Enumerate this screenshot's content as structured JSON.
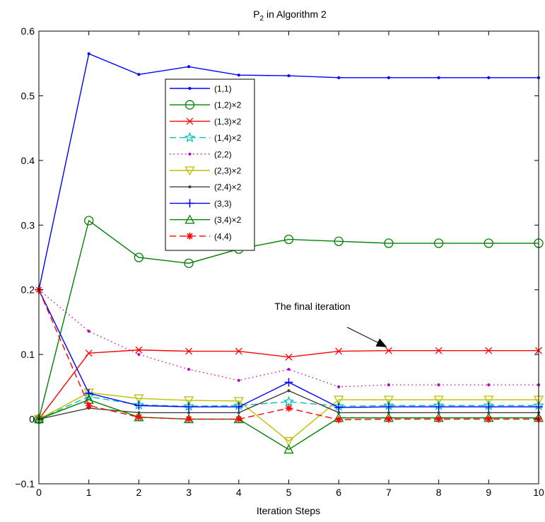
{
  "chart_data": {
    "type": "line",
    "title_main": "P",
    "title_sub": "2",
    "title_rest": " in Algorithm 2",
    "xlabel": "Iteration Steps",
    "ylabel": "",
    "xlim": [
      0,
      10
    ],
    "ylim": [
      -0.1,
      0.6
    ],
    "xticks": [
      0,
      1,
      2,
      3,
      4,
      5,
      6,
      7,
      8,
      9,
      10
    ],
    "yticks": [
      -0.1,
      0,
      0.1,
      0.2,
      0.3,
      0.4,
      0.5,
      0.6
    ],
    "ytick_labels": [
      "−0.1",
      "0",
      "0.1",
      "0.2",
      "0.3",
      "0.4",
      "0.5",
      "0.6"
    ],
    "grid": false,
    "legend_position": "upper-left-center",
    "x": [
      0,
      1,
      2,
      3,
      4,
      5,
      6,
      7,
      8,
      9,
      10
    ],
    "series": [
      {
        "name": "(1,1)",
        "color": "#0000ff",
        "dash": "solid",
        "marker": "dot",
        "values": [
          0.2,
          0.565,
          0.533,
          0.545,
          0.532,
          0.531,
          0.528,
          0.528,
          0.528,
          0.528,
          0.528
        ]
      },
      {
        "name": "(1,2)×2",
        "color": "#008000",
        "dash": "solid",
        "marker": "circle",
        "values": [
          0.0,
          0.307,
          0.25,
          0.241,
          0.263,
          0.278,
          0.275,
          0.272,
          0.272,
          0.272,
          0.272
        ]
      },
      {
        "name": "(1,3)×2",
        "color": "#ff0000",
        "dash": "solid",
        "marker": "x",
        "values": [
          0.0,
          0.102,
          0.107,
          0.105,
          0.105,
          0.096,
          0.105,
          0.106,
          0.106,
          0.106,
          0.106
        ]
      },
      {
        "name": "(1,4)×2",
        "color": "#00bfbf",
        "dash": "dashed",
        "marker": "star",
        "values": [
          0.0,
          0.035,
          0.022,
          0.02,
          0.021,
          0.027,
          0.02,
          0.021,
          0.021,
          0.021,
          0.021
        ]
      },
      {
        "name": "(2,2)",
        "color": "#bf00bf",
        "dash": "dotted",
        "marker": "dot",
        "values": [
          0.2,
          0.136,
          0.1,
          0.077,
          0.06,
          0.077,
          0.05,
          0.053,
          0.053,
          0.053,
          0.053
        ]
      },
      {
        "name": "(2,3)×2",
        "color": "#bfbf00",
        "dash": "solid",
        "marker": "triangle-down",
        "values": [
          0.0,
          0.041,
          0.032,
          0.029,
          0.028,
          -0.034,
          0.03,
          0.03,
          0.03,
          0.03,
          0.03
        ]
      },
      {
        "name": "(2,4)×2",
        "color": "#404040",
        "dash": "solid",
        "marker": "dot",
        "values": [
          0.0,
          0.017,
          0.01,
          0.01,
          0.01,
          0.044,
          0.01,
          0.01,
          0.01,
          0.01,
          0.01
        ]
      },
      {
        "name": "(3,3)",
        "color": "#0000ff",
        "dash": "solid",
        "marker": "plus",
        "values": [
          0.2,
          0.04,
          0.021,
          0.019,
          0.019,
          0.057,
          0.018,
          0.019,
          0.019,
          0.019,
          0.019
        ]
      },
      {
        "name": "(3,4)×2",
        "color": "#008000",
        "dash": "solid",
        "marker": "triangle-up",
        "values": [
          0.0,
          0.03,
          0.003,
          0.0,
          0.0,
          -0.047,
          0.002,
          0.002,
          0.002,
          0.002,
          0.002
        ]
      },
      {
        "name": "(4,4)",
        "color": "#ff0000",
        "dash": "dashed",
        "marker": "asterisk",
        "values": [
          0.2,
          0.021,
          0.003,
          0.0,
          0.0,
          0.017,
          -0.001,
          0.0,
          0.0,
          0.0,
          0.0
        ]
      }
    ],
    "annotation": {
      "text": "The final iteration",
      "arrow_from": [
        6.17,
        0.142
      ],
      "arrow_to": [
        6.95,
        0.112
      ]
    }
  }
}
